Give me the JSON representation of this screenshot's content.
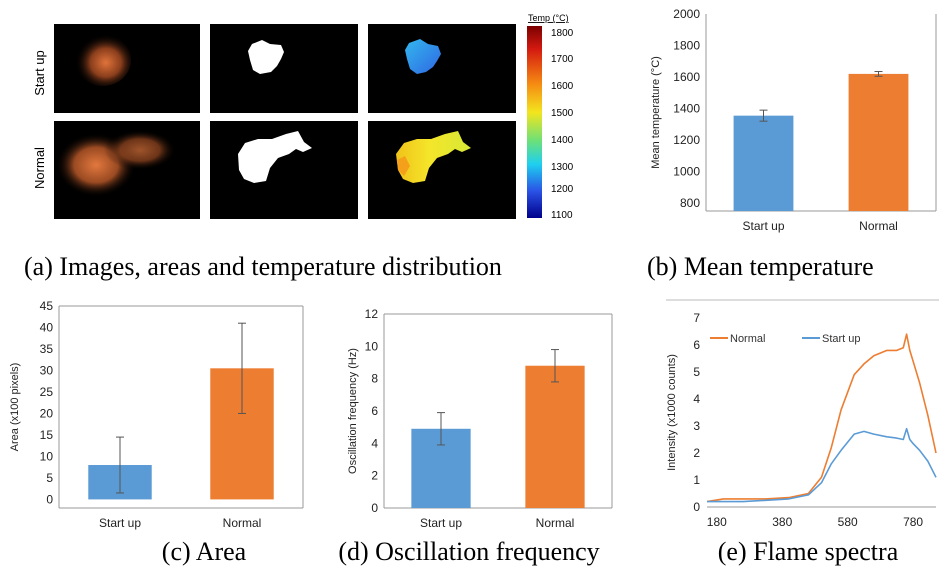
{
  "captions": {
    "a": "(a) Images, areas and temperature distribution",
    "b": "(b) Mean temperature",
    "c": "(c) Area",
    "d": "(d) Oscillation frequency",
    "e": "(e) Flame spectra"
  },
  "panel_a": {
    "row_labels": [
      "Start up",
      "Normal"
    ],
    "colorbar_title": "Temp (°C)",
    "colorbar_ticks": [
      "1800",
      "1700",
      "1600",
      "1500",
      "1400",
      "1300",
      "1200",
      "1100"
    ]
  },
  "colors": {
    "start_up": "#5b9bd5",
    "normal": "#ed7d31"
  },
  "chart_data": [
    {
      "id": "b",
      "type": "bar",
      "categories": [
        "Start up",
        "Normal"
      ],
      "values": [
        1355,
        1620
      ],
      "errors": [
        35,
        15
      ],
      "ylabel": "Mean temperature (°C)",
      "ylim": [
        750,
        2000
      ],
      "yticks": [
        800,
        1000,
        1200,
        1400,
        1600,
        1800,
        2000
      ]
    },
    {
      "id": "c",
      "type": "bar",
      "categories": [
        "Start up",
        "Normal"
      ],
      "values": [
        8,
        30.5
      ],
      "errors": [
        6.5,
        10.5
      ],
      "ylabel": "Area (x100 pixels)",
      "ylim": [
        -2,
        45
      ],
      "yticks": [
        0,
        5,
        10,
        15,
        20,
        25,
        30,
        35,
        40,
        45
      ]
    },
    {
      "id": "d",
      "type": "bar",
      "categories": [
        "Start up",
        "Normal"
      ],
      "values": [
        4.9,
        8.8
      ],
      "errors": [
        1.0,
        1.0
      ],
      "ylabel": "Oscillation frequency (Hz)",
      "ylim": [
        0,
        12
      ],
      "yticks": [
        0,
        2,
        4,
        6,
        8,
        10,
        12
      ]
    },
    {
      "id": "e",
      "type": "line",
      "ylabel": "Intensity (x1000 counts)",
      "xlim": [
        150,
        850
      ],
      "ylim": [
        0,
        7
      ],
      "xticks": [
        180,
        380,
        580,
        780
      ],
      "yticks": [
        0,
        1,
        2,
        3,
        4,
        5,
        6,
        7
      ],
      "series": [
        {
          "name": "Normal",
          "x": [
            150,
            200,
            260,
            330,
            400,
            460,
            500,
            530,
            560,
            600,
            630,
            660,
            700,
            730,
            750,
            760,
            770,
            780,
            800,
            825,
            850
          ],
          "y": [
            0.2,
            0.3,
            0.3,
            0.3,
            0.35,
            0.5,
            1.1,
            2.2,
            3.6,
            4.9,
            5.3,
            5.6,
            5.8,
            5.8,
            5.9,
            6.4,
            5.8,
            5.4,
            4.6,
            3.4,
            2.0
          ]
        },
        {
          "name": "Start up",
          "x": [
            150,
            200,
            260,
            330,
            400,
            460,
            500,
            530,
            560,
            600,
            630,
            660,
            700,
            730,
            750,
            760,
            770,
            780,
            800,
            825,
            850
          ],
          "y": [
            0.2,
            0.2,
            0.2,
            0.25,
            0.3,
            0.45,
            0.9,
            1.6,
            2.1,
            2.7,
            2.8,
            2.7,
            2.6,
            2.55,
            2.5,
            2.9,
            2.5,
            2.35,
            2.1,
            1.7,
            1.1
          ]
        }
      ]
    }
  ]
}
